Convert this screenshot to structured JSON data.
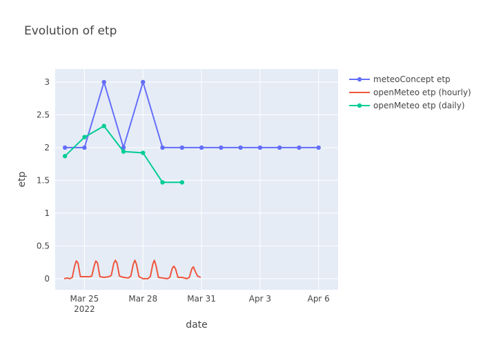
{
  "chart_data": {
    "type": "line",
    "title": "Evolution of etp",
    "xlabel": "date",
    "ylabel": "etp",
    "xlim": [
      "2022-03-23T12:00",
      "2022-04-07T00:00"
    ],
    "ylim": [
      -0.17,
      3.2
    ],
    "grid": true,
    "legend_position": "top-right",
    "x_ticks": [
      {
        "value": "2022-03-25",
        "label": "Mar 25",
        "sublabel": "2022"
      },
      {
        "value": "2022-03-28",
        "label": "Mar 28",
        "sublabel": ""
      },
      {
        "value": "2022-03-31",
        "label": "Mar 31",
        "sublabel": ""
      },
      {
        "value": "2022-04-03",
        "label": "Apr 3",
        "sublabel": ""
      },
      {
        "value": "2022-04-06",
        "label": "Apr 6",
        "sublabel": ""
      }
    ],
    "y_ticks": [
      {
        "value": 0,
        "label": "0"
      },
      {
        "value": 0.5,
        "label": "0.5"
      },
      {
        "value": 1,
        "label": "1"
      },
      {
        "value": 1.5,
        "label": "1.5"
      },
      {
        "value": 2,
        "label": "2"
      },
      {
        "value": 2.5,
        "label": "2.5"
      },
      {
        "value": 3,
        "label": "3"
      }
    ],
    "series": [
      {
        "name": "meteoConcept etp",
        "color": "#636efa",
        "mode": "lines+markers",
        "points": [
          [
            "2022-03-24",
            2
          ],
          [
            "2022-03-25",
            2
          ],
          [
            "2022-03-26",
            3
          ],
          [
            "2022-03-27",
            2
          ],
          [
            "2022-03-28",
            3
          ],
          [
            "2022-03-29",
            2
          ],
          [
            "2022-03-30",
            2
          ],
          [
            "2022-03-31",
            2
          ],
          [
            "2022-04-01",
            2
          ],
          [
            "2022-04-02",
            2
          ],
          [
            "2022-04-03",
            2
          ],
          [
            "2022-04-04",
            2
          ],
          [
            "2022-04-05",
            2
          ],
          [
            "2022-04-06",
            2
          ]
        ]
      },
      {
        "name": "openMeteo etp (hourly)",
        "color": "#ef553b",
        "mode": "lines",
        "points": [
          [
            "2022-03-23T23:00",
            0.0
          ],
          [
            "2022-03-24T03:00",
            0.01
          ],
          [
            "2022-03-24T06:00",
            0.0
          ],
          [
            "2022-03-24T09:00",
            0.02
          ],
          [
            "2022-03-24T12:00",
            0.2
          ],
          [
            "2022-03-24T14:00",
            0.27
          ],
          [
            "2022-03-24T16:00",
            0.24
          ],
          [
            "2022-03-24T19:00",
            0.03
          ],
          [
            "2022-03-24T23:00",
            0.03
          ],
          [
            "2022-03-25T06:00",
            0.03
          ],
          [
            "2022-03-25T09:00",
            0.04
          ],
          [
            "2022-03-25T12:00",
            0.2
          ],
          [
            "2022-03-25T14:00",
            0.27
          ],
          [
            "2022-03-25T16:00",
            0.24
          ],
          [
            "2022-03-25T19:00",
            0.03
          ],
          [
            "2022-03-26T00:00",
            0.02
          ],
          [
            "2022-03-26T06:00",
            0.03
          ],
          [
            "2022-03-26T09:00",
            0.05
          ],
          [
            "2022-03-26T12:00",
            0.23
          ],
          [
            "2022-03-26T14:00",
            0.28
          ],
          [
            "2022-03-26T16:00",
            0.24
          ],
          [
            "2022-03-26T19:00",
            0.04
          ],
          [
            "2022-03-27T00:00",
            0.02
          ],
          [
            "2022-03-27T06:00",
            0.01
          ],
          [
            "2022-03-27T09:00",
            0.04
          ],
          [
            "2022-03-27T12:00",
            0.22
          ],
          [
            "2022-03-27T14:00",
            0.28
          ],
          [
            "2022-03-27T16:00",
            0.22
          ],
          [
            "2022-03-27T19:00",
            0.03
          ],
          [
            "2022-03-28T00:00",
            0.0
          ],
          [
            "2022-03-28T06:00",
            0.0
          ],
          [
            "2022-03-28T09:00",
            0.03
          ],
          [
            "2022-03-28T12:00",
            0.22
          ],
          [
            "2022-03-28T14:00",
            0.28
          ],
          [
            "2022-03-28T16:00",
            0.2
          ],
          [
            "2022-03-28T19:00",
            0.02
          ],
          [
            "2022-03-29T00:00",
            0.01
          ],
          [
            "2022-03-29T06:00",
            0.0
          ],
          [
            "2022-03-29T09:00",
            0.02
          ],
          [
            "2022-03-29T12:00",
            0.16
          ],
          [
            "2022-03-29T14:00",
            0.19
          ],
          [
            "2022-03-29T16:00",
            0.15
          ],
          [
            "2022-03-29T19:00",
            0.02
          ],
          [
            "2022-03-30T00:00",
            0.02
          ],
          [
            "2022-03-30T06:00",
            0.0
          ],
          [
            "2022-03-30T09:00",
            0.02
          ],
          [
            "2022-03-30T12:00",
            0.15
          ],
          [
            "2022-03-30T14:00",
            0.18
          ],
          [
            "2022-03-30T16:00",
            0.12
          ],
          [
            "2022-03-30T19:00",
            0.04
          ],
          [
            "2022-03-30T23:00",
            0.02
          ]
        ]
      },
      {
        "name": "openMeteo etp (daily)",
        "color": "#00cc96",
        "mode": "lines+markers",
        "points": [
          [
            "2022-03-24",
            1.87
          ],
          [
            "2022-03-25",
            2.16
          ],
          [
            "2022-03-26",
            2.33
          ],
          [
            "2022-03-27",
            1.94
          ],
          [
            "2022-03-28",
            1.92
          ],
          [
            "2022-03-29",
            1.47
          ],
          [
            "2022-03-30",
            1.47
          ]
        ]
      }
    ]
  }
}
